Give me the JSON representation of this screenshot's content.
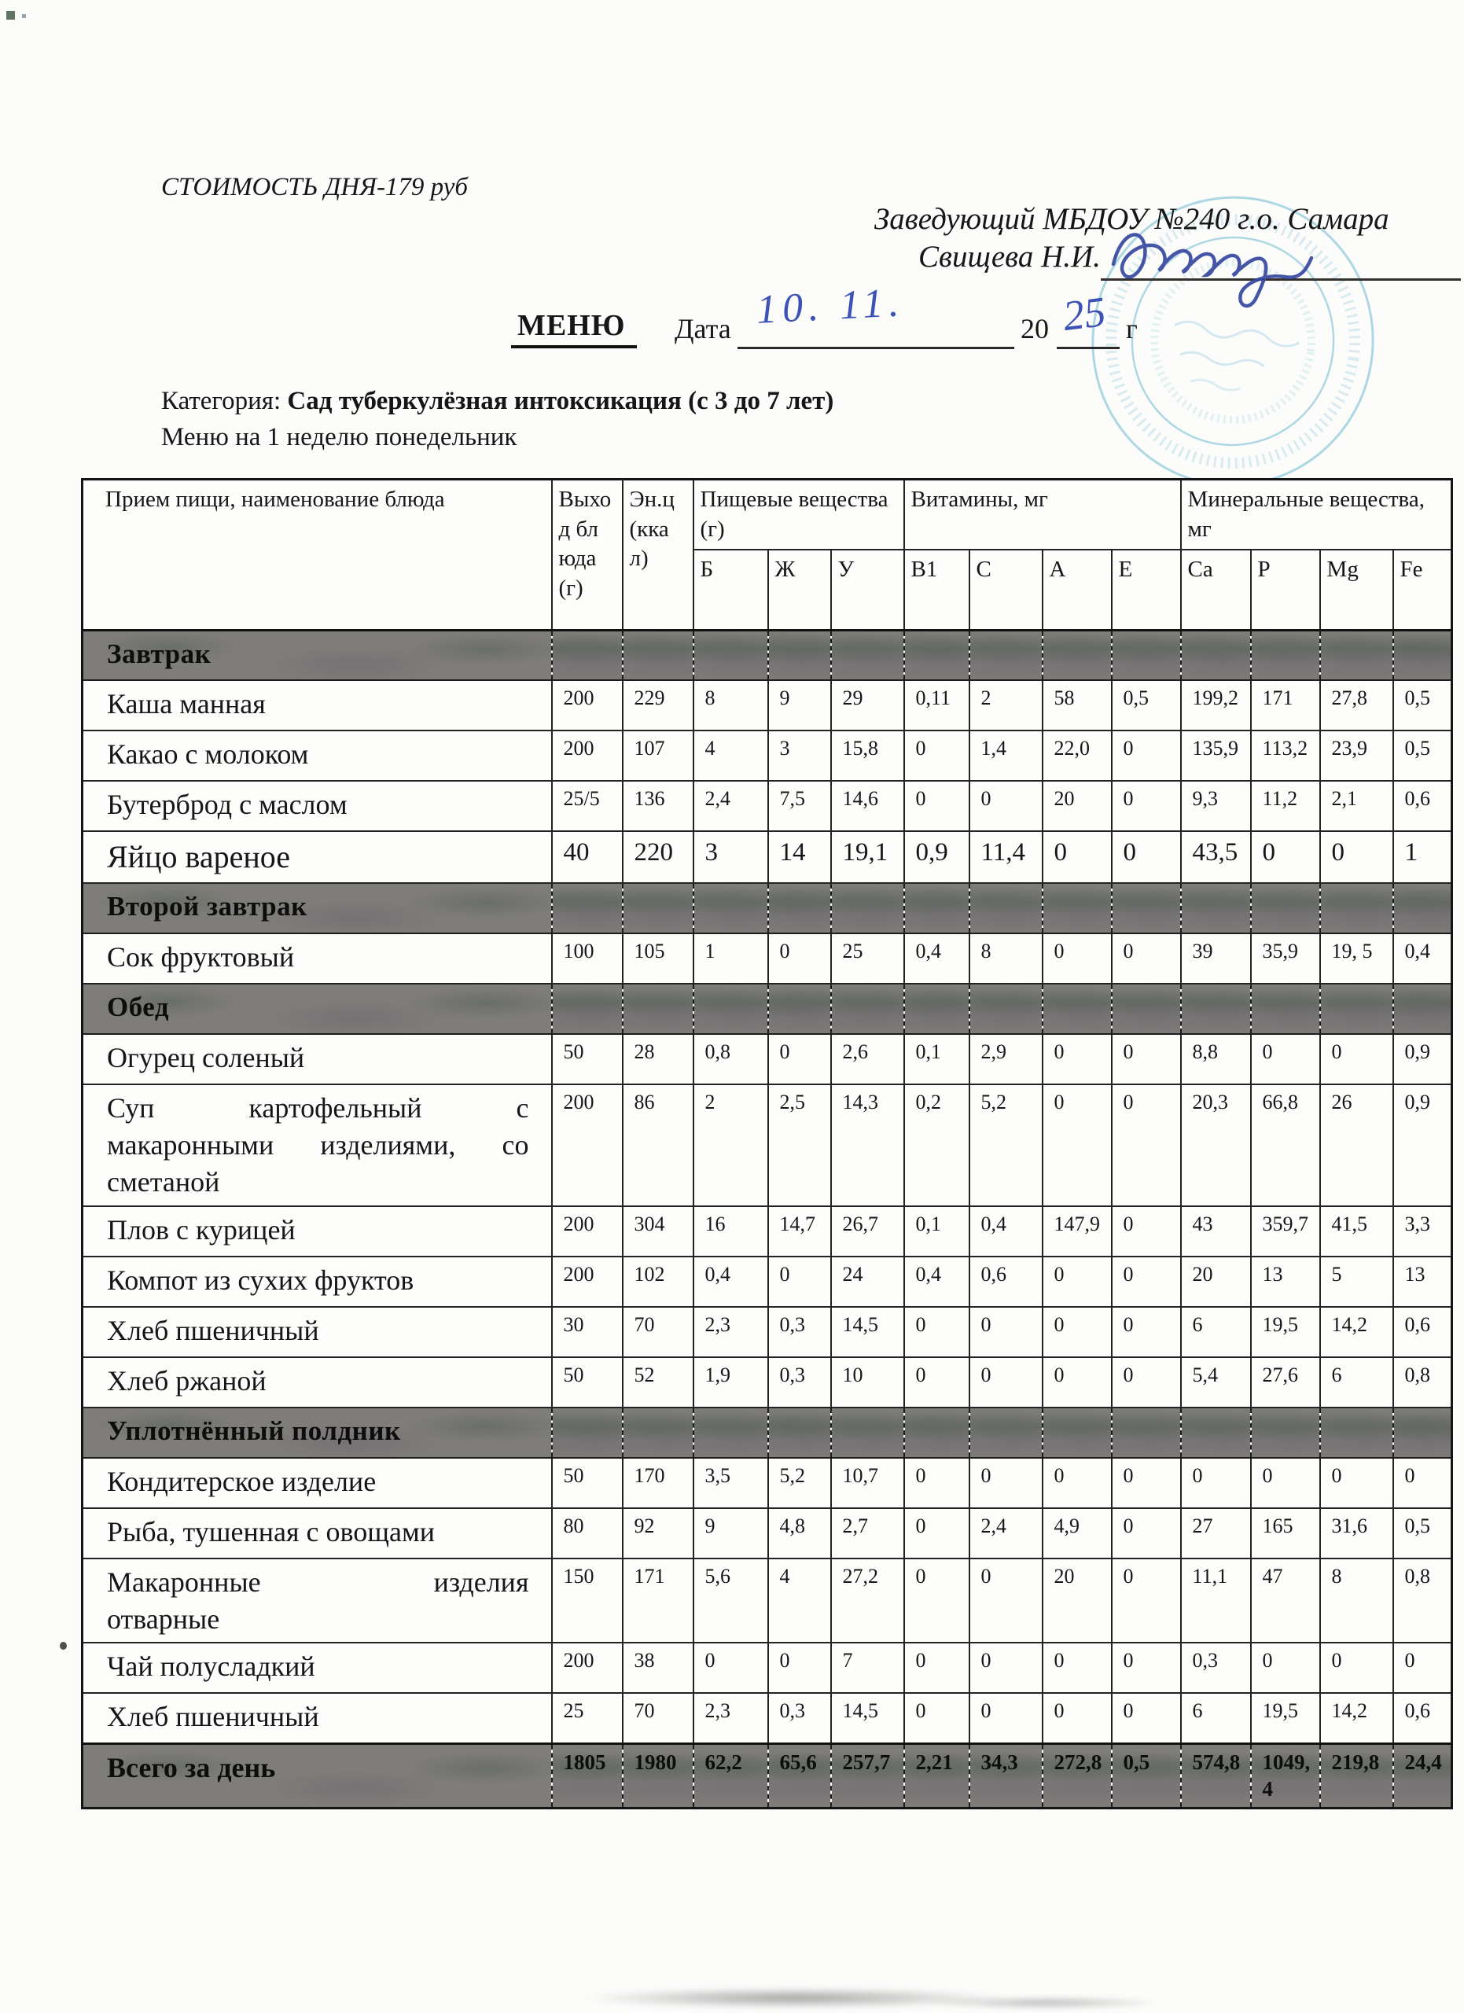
{
  "page": {
    "cost_line": "СТОИМОСТЬ ДНЯ-179 руб",
    "approver_line1": "Заведующий МБДОУ №240 г.о. Самара",
    "approver_line2": "Свищева Н.И.",
    "menu_label": "МЕНЮ",
    "date_label": "Дата",
    "date_handwritten": "10. 11.",
    "year_prefix": "20",
    "year_handwritten": "25",
    "year_suffix": "г",
    "category_label": "Категория:",
    "category_value": "Сад туберкулёзная интоксикация (с 3 до 7 лет)",
    "week_line": "Меню на 1 неделю понедельник"
  },
  "table": {
    "headers": {
      "dish": "Прием пищи, наименование блюда",
      "output": "Выход блюда (г)",
      "energy": "Эн.ц (ккал)",
      "nutrients": "Пищевые вещества (г)",
      "vitamins": "Витамины, мг",
      "minerals": "Минеральные вещества, мг",
      "sub": [
        "Б",
        "Ж",
        "У",
        "В1",
        "С",
        "А",
        "Е",
        "Ca",
        "P",
        "Mg",
        "Fe"
      ]
    },
    "rows": [
      {
        "type": "section",
        "label": "Завтрак"
      },
      {
        "type": "dish",
        "name": "Каша манная",
        "values": [
          "200",
          "229",
          "8",
          "9",
          "29",
          "0,11",
          "2",
          "58",
          "0,5",
          "199,2",
          "171",
          "27,8",
          "0,5"
        ]
      },
      {
        "type": "dish",
        "name": "Какао с молоком",
        "values": [
          "200",
          "107",
          "4",
          "3",
          "15,8",
          "0",
          "1,4",
          "22,0",
          "0",
          "135,9",
          "113,2",
          "23,9",
          "0,5"
        ]
      },
      {
        "type": "dish",
        "name": "Бутерброд с маслом",
        "values": [
          "25/5",
          "136",
          "2,4",
          "7,5",
          "14,6",
          "0",
          "0",
          "20",
          "0",
          "9,3",
          "11,2",
          "2,1",
          "0,6"
        ]
      },
      {
        "type": "dish",
        "name": "Яйцо вареное",
        "large": true,
        "values": [
          "40",
          "220",
          "3",
          "14",
          "19,1",
          "0,9",
          "11,4",
          "0",
          "0",
          "43,5",
          "0",
          "0",
          "1"
        ]
      },
      {
        "type": "section",
        "label": "Второй завтрак"
      },
      {
        "type": "dish",
        "name": "Сок фруктовый",
        "values": [
          "100",
          "105",
          "1",
          "0",
          "25",
          "0,4",
          "8",
          "0",
          "0",
          "39",
          "35,9",
          "19, 5",
          "0,4"
        ]
      },
      {
        "type": "section",
        "label": "Обед"
      },
      {
        "type": "dish",
        "name": "Огурец соленый",
        "values": [
          "50",
          "28",
          "0,8",
          "0",
          "2,6",
          "0,1",
          "2,9",
          "0",
          "0",
          "8,8",
          "0",
          "0",
          "0,9"
        ]
      },
      {
        "type": "dish",
        "name": "Суп картофельный с\nмакаронными изделиями, со\nсметаной",
        "justify": true,
        "values": [
          "200",
          "86",
          "2",
          "2,5",
          "14,3",
          "0,2",
          "5,2",
          "0",
          "0",
          "20,3",
          "66,8",
          "26",
          "0,9"
        ]
      },
      {
        "type": "dish",
        "name": "Плов с курицей",
        "values": [
          "200",
          "304",
          "16",
          "14,7",
          "26,7",
          "0,1",
          "0,4",
          "147,9",
          "0",
          "43",
          "359,7",
          "41,5",
          "3,3"
        ]
      },
      {
        "type": "dish",
        "name": "Компот из сухих фруктов",
        "values": [
          "200",
          "102",
          "0,4",
          "0",
          "24",
          "0,4",
          "0,6",
          "0",
          "0",
          "20",
          "13",
          "5",
          "13"
        ]
      },
      {
        "type": "dish",
        "name": "Хлеб пшеничный",
        "values": [
          "30",
          "70",
          "2,3",
          "0,3",
          "14,5",
          "0",
          "0",
          "0",
          "0",
          "6",
          "19,5",
          "14,2",
          "0,6"
        ]
      },
      {
        "type": "dish",
        "name": "Хлеб ржаной",
        "values": [
          "50",
          "52",
          "1,9",
          "0,3",
          "10",
          "0",
          "0",
          "0",
          "0",
          "5,4",
          "27,6",
          "6",
          "0,8"
        ]
      },
      {
        "type": "section",
        "label": "Уплотнённый полдник"
      },
      {
        "type": "dish",
        "name": "Кондитерское изделие",
        "values": [
          "50",
          "170",
          "3,5",
          "5,2",
          "10,7",
          "0",
          "0",
          "0",
          "0",
          "0",
          "0",
          "0",
          "0"
        ]
      },
      {
        "type": "dish",
        "name": "Рыба, тушенная с овощами",
        "values": [
          "80",
          "92",
          "9",
          "4,8",
          "2,7",
          "0",
          "2,4",
          "4,9",
          "0",
          "27",
          "165",
          "31,6",
          "0,5"
        ]
      },
      {
        "type": "dish",
        "name": "Макаронные изделия\nотварные",
        "justify": true,
        "values": [
          "150",
          "171",
          "5,6",
          "4",
          "27,2",
          "0",
          "0",
          "20",
          "0",
          "11,1",
          "47",
          "8",
          "0,8"
        ]
      },
      {
        "type": "dish",
        "name": "Чай полусладкий",
        "values": [
          "200",
          "38",
          "0",
          "0",
          "7",
          "0",
          "0",
          "0",
          "0",
          "0,3",
          "0",
          "0",
          "0"
        ]
      },
      {
        "type": "dish",
        "name": "Хлеб пшеничный",
        "values": [
          "25",
          "70",
          "2,3",
          "0,3",
          "14,5",
          "0",
          "0",
          "0",
          "0",
          "6",
          "19,5",
          "14,2",
          "0,6"
        ]
      },
      {
        "type": "total",
        "name": "Всего за день",
        "values": [
          "1805",
          "1980",
          "62,2",
          "65,6",
          "257,7",
          "2,21",
          "34,3",
          "272,8",
          "0,5",
          "574,8",
          "1049,4",
          "219,8",
          "24,4"
        ]
      }
    ]
  }
}
